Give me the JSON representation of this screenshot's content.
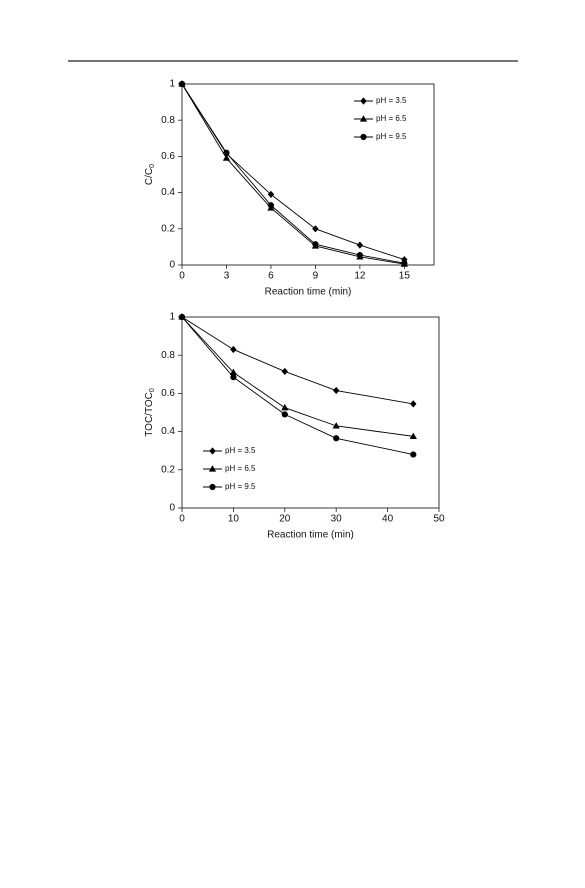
{
  "chart_data": [
    {
      "type": "line",
      "x_label": "Reaction time (min)",
      "y_label": "C/C",
      "y_label_sub": "0",
      "x": [
        0,
        3,
        6,
        9,
        12,
        15
      ],
      "xlim": [
        0,
        17
      ],
      "xticks": [
        0,
        3,
        6,
        9,
        12,
        15
      ],
      "ylim": [
        0,
        1
      ],
      "yticks": [
        0,
        0.2,
        0.4,
        0.6,
        0.8,
        1
      ],
      "legend": "upper right",
      "series": [
        {
          "name": "pH = 3.5",
          "color": "#000000",
          "marker": "diamond",
          "values": [
            1,
            0.615,
            0.39,
            0.2,
            0.11,
            0.03
          ]
        },
        {
          "name": "pH = 6.5",
          "color": "#000000",
          "marker": "triangle",
          "values": [
            1,
            0.59,
            0.315,
            0.105,
            0.045,
            0.005
          ]
        },
        {
          "name": "pH = 9.5",
          "color": "#000000",
          "marker": "circle",
          "values": [
            1,
            0.62,
            0.33,
            0.115,
            0.055,
            0.01
          ]
        }
      ]
    },
    {
      "type": "line",
      "x_label": "Reaction time (min)",
      "y_label": "TOC/TOC",
      "y_label_sub": "0",
      "x": [
        0,
        10,
        20,
        30,
        45
      ],
      "xlim": [
        0,
        50
      ],
      "xticks": [
        0,
        10,
        20,
        30,
        40,
        50
      ],
      "ylim": [
        0,
        1
      ],
      "yticks": [
        0,
        0.2,
        0.4,
        0.6,
        0.8,
        1
      ],
      "legend": "lower left",
      "series": [
        {
          "name": "pH = 3.5",
          "color": "#000000",
          "marker": "diamond",
          "values": [
            1,
            0.83,
            0.715,
            0.615,
            0.545
          ]
        },
        {
          "name": "pH = 6.5",
          "color": "#000000",
          "marker": "triangle",
          "values": [
            1,
            0.71,
            0.525,
            0.43,
            0.375
          ]
        },
        {
          "name": "pH = 9.5",
          "color": "#000000",
          "marker": "circle",
          "values": [
            1,
            0.685,
            0.49,
            0.365,
            0.28
          ]
        }
      ]
    }
  ]
}
